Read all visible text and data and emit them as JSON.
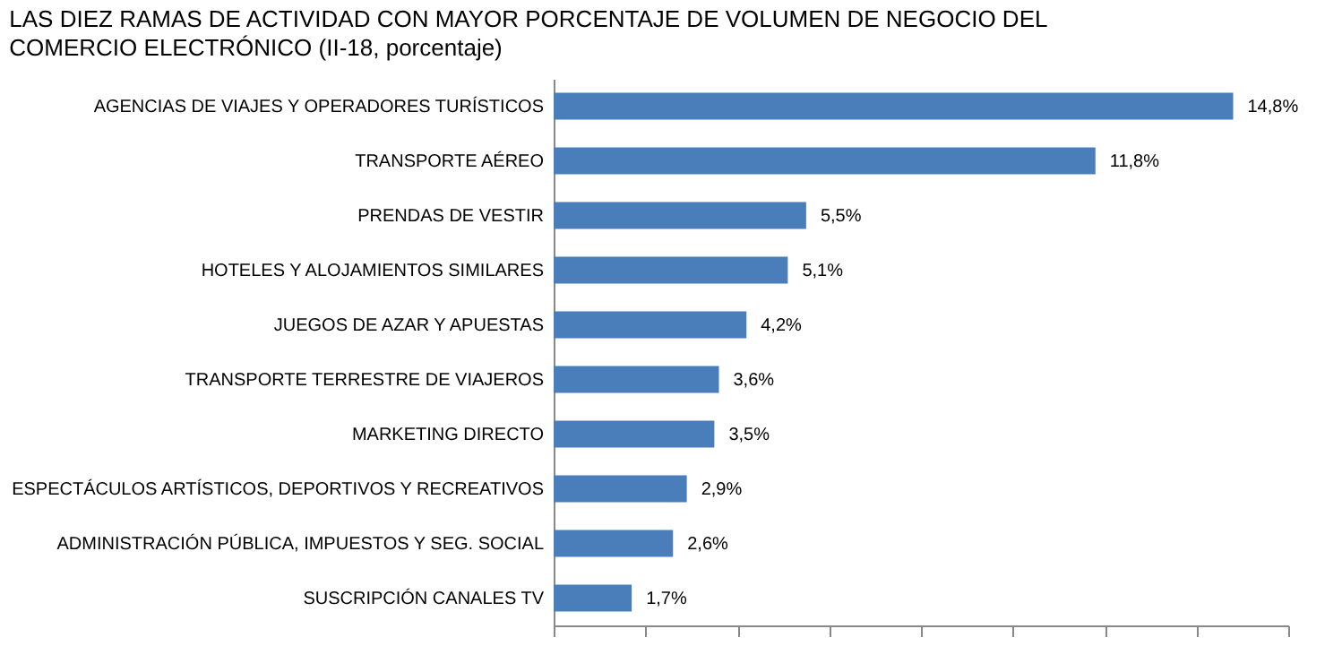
{
  "chart_data": {
    "type": "bar",
    "orientation": "horizontal",
    "title": "LAS DIEZ RAMAS DE ACTIVIDAD CON MAYOR PORCENTAJE DE VOLUMEN DE NEGOCIO DEL COMERCIO ELECTRÓNICO (II-18, porcentaje)",
    "categories": [
      "AGENCIAS DE VIAJES Y OPERADORES TURÍSTICOS",
      "TRANSPORTE AÉREO",
      "PRENDAS DE VESTIR",
      "HOTELES  Y ALOJAMIENTOS SIMILARES",
      "JUEGOS DE AZAR Y APUESTAS",
      "TRANSPORTE TERRESTRE DE VIAJEROS",
      "MARKETING DIRECTO",
      "ESPECTÁCULOS ARTÍSTICOS, DEPORTIVOS Y RECREATIVOS",
      "ADMINISTRACIÓN PÚBLICA, IMPUESTOS Y SEG. SOCIAL",
      "SUSCRIPCIÓN CANALES TV"
    ],
    "values": [
      14.8,
      11.8,
      5.5,
      5.1,
      4.2,
      3.6,
      3.5,
      2.9,
      2.6,
      1.7
    ],
    "value_labels": [
      "14,8%",
      "11,8%",
      "5,5%",
      "5,1%",
      "4,2%",
      "3,6%",
      "3,5%",
      "2,9%",
      "2,6%",
      "1,7%"
    ],
    "color": "#4a7ebb",
    "xlim": [
      0,
      16
    ],
    "xticks": [
      {
        "value": 0,
        "label": null
      },
      {
        "value": 2,
        "label": null
      },
      {
        "value": 4,
        "label": null
      },
      {
        "value": 6,
        "label": null
      },
      {
        "value": 8,
        "label": null
      },
      {
        "value": 10,
        "label": null
      },
      {
        "value": 12,
        "label": null
      },
      {
        "value": 14,
        "label": null
      },
      {
        "value": 16,
        "label": null
      }
    ],
    "tick_labels": "y",
    "grid": false
  }
}
